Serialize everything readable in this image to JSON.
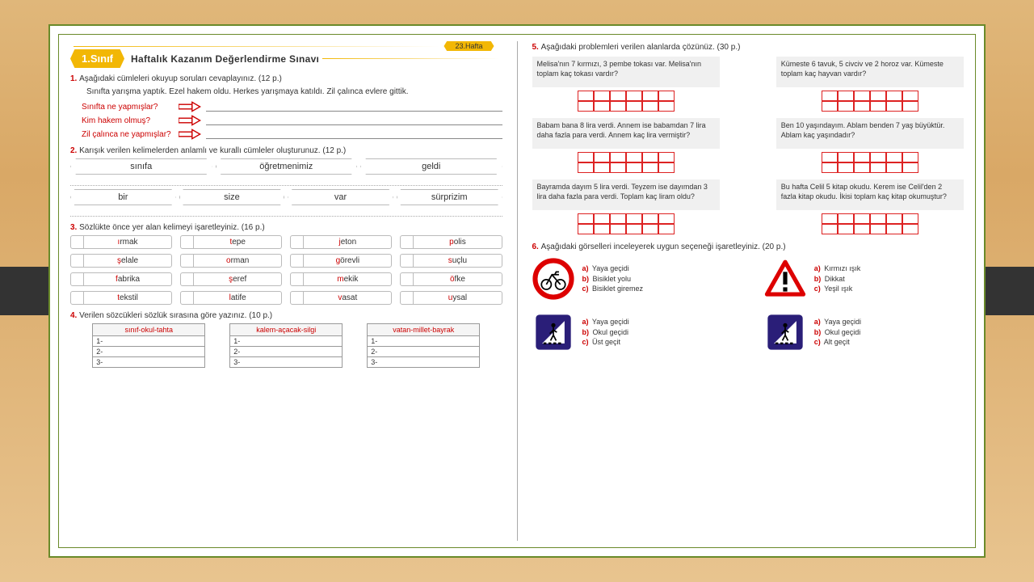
{
  "header": {
    "grade": "1.Sınıf",
    "week": "23.Hafta",
    "title": "Haftalık Kazanım Değerlendirme Sınavı"
  },
  "q1": {
    "prompt": "Aşağıdaki cümleleri okuyup soruları cevaplayınız. (12 p.)",
    "passage": "Sınıfta yarışma yaptık. Ezel hakem oldu. Herkes yarışmaya katıldı. Zil çalınca evlere gittik.",
    "rows": [
      "Sınıfta ne yapmışlar?",
      "Kim hakem olmuş?",
      "Zil çalınca ne yapmışlar?"
    ]
  },
  "q2": {
    "prompt": "Karışık verilen kelimelerden anlamlı ve kurallı cümleler oluşturunuz. (12 p.)",
    "row1": [
      "sınıfa",
      "öğretmenimiz",
      "geldi"
    ],
    "row2": [
      "bir",
      "size",
      "var",
      "sürprizim"
    ]
  },
  "q3": {
    "prompt": "Sözlükte önce yer alan kelimeyi işaretleyiniz. (16 p.)",
    "words": [
      [
        "ı",
        "rmak"
      ],
      [
        "t",
        "epe"
      ],
      [
        "j",
        "eton"
      ],
      [
        "p",
        "olis"
      ],
      [
        "ş",
        "elale"
      ],
      [
        "o",
        "rman"
      ],
      [
        "g",
        "örevli"
      ],
      [
        "s",
        "uçlu"
      ],
      [
        "f",
        "abrika"
      ],
      [
        "ş",
        "eref"
      ],
      [
        "m",
        "ekik"
      ],
      [
        "ö",
        "fke"
      ],
      [
        "t",
        "ekstil"
      ],
      [
        "l",
        "atife"
      ],
      [
        "v",
        "asat"
      ],
      [
        "u",
        "ysal"
      ]
    ]
  },
  "q4": {
    "prompt": "Verilen sözcükleri sözlük sırasına göre yazınız. (10 p.)",
    "cols": [
      "sınıf-okul-tahta",
      "kalem-açacak-silgi",
      "vatan-millet-bayrak"
    ],
    "lines": [
      "1-",
      "2-",
      "3-"
    ]
  },
  "q5": {
    "prompt": "Aşağıdaki problemleri verilen alanlarda çözünüz. (30 p.)",
    "problems": [
      "Melisa'nın 7 kırmızı, 3 pembe tokası var. Melisa'nın toplam kaç tokası vardır?",
      "Kümeste 6 tavuk, 5 civciv ve 2 horoz var. Kümeste toplam kaç hayvan vardır?",
      "Babam bana 8 lira verdi. Annem ise babamdan 7 lira daha fazla para verdi. Annem kaç lira vermiştir?",
      "Ben 10 yaşındayım. Ablam benden 7 yaş büyüktür. Ablam kaç yaşındadır?",
      "Bayramda dayım 5 lira verdi. Teyzem ise dayımdan 3 lira daha fazla para verdi. Toplam kaç liram oldu?",
      "Bu hafta Celil 5 kitap okudu. Kerem ise Celil'den 2 fazla kitap okudu. İkisi toplam kaç kitap okumuştur?"
    ]
  },
  "q6": {
    "prompt": "Aşağıdaki görselleri inceleyerek uygun seçeneği işaretleyiniz. (20 p.)",
    "items": [
      {
        "sign": "bike",
        "opts": [
          "Yaya geçidi",
          "Bisiklet yolu",
          "Bisiklet giremez"
        ]
      },
      {
        "sign": "warn",
        "opts": [
          "Kırmızı ışık",
          "Dikkat",
          "Yeşil ışık"
        ]
      },
      {
        "sign": "ped1",
        "opts": [
          "Yaya geçidi",
          "Okul geçidi",
          "Üst geçit"
        ]
      },
      {
        "sign": "ped2",
        "opts": [
          "Yaya geçidi",
          "Okul geçidi",
          "Alt geçit"
        ]
      }
    ],
    "letters": [
      "a)",
      "b)",
      "c)"
    ]
  },
  "colors": {
    "accent": "#f2b705",
    "qnum": "#c00000",
    "grid_border": "#d22",
    "frame": "#6a8a2a"
  }
}
